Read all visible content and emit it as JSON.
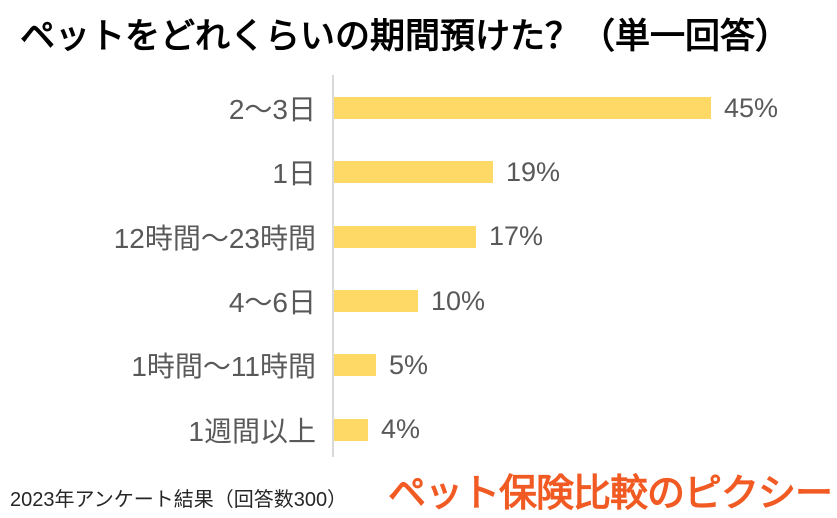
{
  "page": {
    "background": "#FFFFFF"
  },
  "chart_data": {
    "type": "bar",
    "orientation": "horizontal",
    "title": "ペットをどれくらいの期間預けた？（単一回答）",
    "categories": [
      "2〜3日",
      "1日",
      "12時間〜23時間",
      "4〜6日",
      "1時間〜11時間",
      "1週間以上"
    ],
    "values": [
      45,
      19,
      17,
      10,
      5,
      4
    ],
    "value_labels": [
      "45%",
      "19%",
      "17%",
      "10%",
      "5%",
      "4%"
    ],
    "unit": "%",
    "xlim": [
      0,
      45
    ],
    "grid": false,
    "legend": false,
    "sort_order": "descending",
    "bar_color": "#FFD966",
    "label_color": "#595959",
    "axis_line_color": "#D9D9D9",
    "title_color": "#000000"
  },
  "footer": {
    "note": "2023年アンケート結果（回答数300）",
    "logo_text": "ペット保険比較のピクシー",
    "logo_color": "#F15A22",
    "note_color": "#262626"
  }
}
